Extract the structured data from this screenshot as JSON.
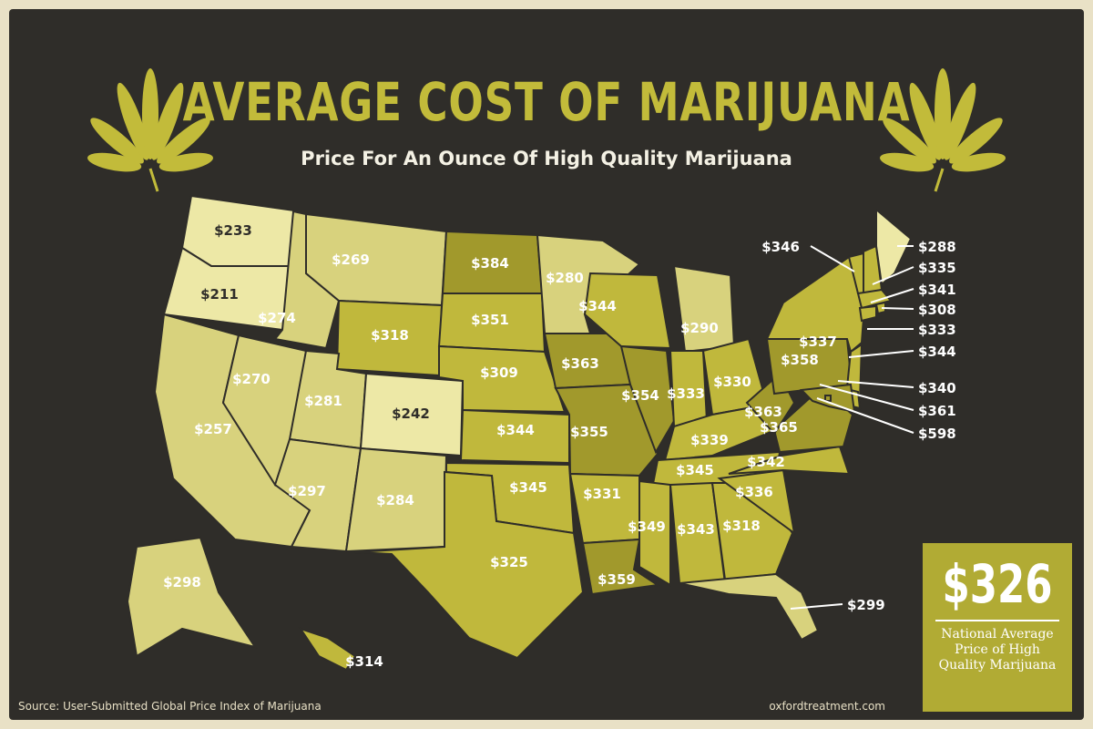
{
  "title": "AVERAGE COST OF MARIJUANA",
  "subtitle": "Price For An Ounce Of High Quality Marijuana",
  "national": {
    "value": "$326",
    "label": "National Average Price of High Quality Marijuana"
  },
  "source": "Source: User-Submitted Global Price Index of Marijuana",
  "site": "oxfordtreatment.com",
  "colors": {
    "background": "#2f2d29",
    "tier_low": "#ede8a6",
    "tier_midlow": "#d8d27d",
    "tier_mid": "#c0b83c",
    "tier_high": "#a1992c",
    "accent": "#c2bb3a"
  },
  "prices": {
    "WA": "$233",
    "OR": "$211",
    "CA": "$257",
    "NV": "$270",
    "ID": "$274",
    "MT": "$269",
    "WY": "$318",
    "UT": "$281",
    "CO": "$242",
    "AZ": "$297",
    "NM": "$284",
    "ND": "$384",
    "SD": "$351",
    "NE": "$309",
    "KS": "$344",
    "OK": "$345",
    "TX": "$325",
    "MN": "$280",
    "IA": "$363",
    "MO": "$355",
    "AR": "$331",
    "LA": "$359",
    "WI": "$344",
    "IL": "$354",
    "MI": "$290",
    "IN": "$333",
    "OH": "$330",
    "KY": "$339",
    "TN": "$345",
    "MS": "$349",
    "AL": "$343",
    "GA": "$318",
    "FL": "$299",
    "SC": "$336",
    "NC": "$342",
    "VA": "$365",
    "WV": "$363",
    "PA": "$358",
    "NY": "$337",
    "VT": "$346",
    "ME": "$288",
    "NH": "$335",
    "MA": "$341",
    "RI": "$308",
    "CT": "$333",
    "NJ": "$344",
    "DE": "$340",
    "MD": "$361",
    "DC": "$598",
    "AK": "$298",
    "HI": "$314"
  }
}
